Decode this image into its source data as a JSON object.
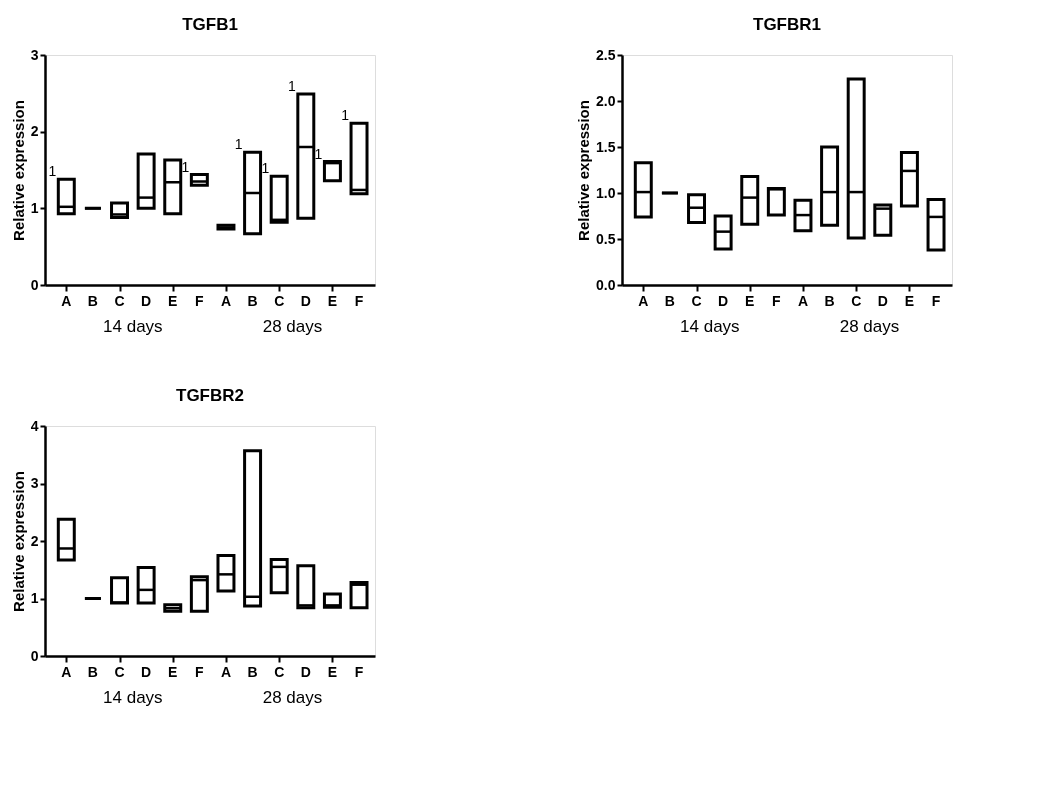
{
  "chart_data": [
    {
      "type": "box",
      "title": "TGFB1",
      "ylabel": "Relative expression",
      "categories": [
        "A",
        "B",
        "C",
        "D",
        "E",
        "F",
        "A",
        "B",
        "C",
        "D",
        "E",
        "F"
      ],
      "boxes": [
        {
          "low": 0.93,
          "q1": 0.93,
          "median": 1.02,
          "q3": 1.38,
          "high": 1.38
        },
        {
          "low": 1.0,
          "q1": 1.0,
          "median": 1.0,
          "q3": 1.0,
          "high": 1.0
        },
        {
          "low": 0.88,
          "q1": 0.88,
          "median": 0.92,
          "q3": 1.07,
          "high": 1.07
        },
        {
          "low": 1.0,
          "q1": 1.0,
          "median": 1.14,
          "q3": 1.71,
          "high": 1.71
        },
        {
          "low": 0.93,
          "q1": 0.93,
          "median": 1.34,
          "q3": 1.63,
          "high": 1.63
        },
        {
          "low": 1.3,
          "q1": 1.3,
          "median": 1.35,
          "q3": 1.44,
          "high": 1.44
        },
        {
          "low": 0.73,
          "q1": 0.73,
          "median": 0.75,
          "q3": 0.78,
          "high": 0.78
        },
        {
          "low": 0.67,
          "q1": 0.67,
          "median": 1.2,
          "q3": 1.73,
          "high": 1.73
        },
        {
          "low": 0.82,
          "q1": 0.82,
          "median": 0.85,
          "q3": 1.42,
          "high": 1.42
        },
        {
          "low": 0.87,
          "q1": 0.87,
          "median": 1.8,
          "q3": 2.49,
          "high": 2.49
        },
        {
          "low": 1.36,
          "q1": 1.36,
          "median": 1.59,
          "q3": 1.61,
          "high": 1.61
        },
        {
          "low": 1.19,
          "q1": 1.19,
          "median": 1.24,
          "q3": 2.11,
          "high": 2.11
        }
      ],
      "ylim": [
        0,
        3
      ],
      "yticks": [
        0,
        1,
        2,
        3
      ],
      "grid": false,
      "value_labels": [
        "1",
        null,
        null,
        null,
        null,
        "1",
        null,
        "1",
        "1",
        "1",
        "1",
        "1"
      ],
      "annotations": [
        "14 days",
        "28 days"
      ]
    },
    {
      "type": "box",
      "title": "TGFBR1",
      "ylabel": "Relative expression",
      "categories": [
        "A",
        "B",
        "C",
        "D",
        "E",
        "F",
        "A",
        "B",
        "C",
        "D",
        "E",
        "F"
      ],
      "boxes": [
        {
          "low": 0.74,
          "q1": 0.74,
          "median": 1.01,
          "q3": 1.33,
          "high": 1.33
        },
        {
          "low": 1.0,
          "q1": 1.0,
          "median": 1.0,
          "q3": 1.0,
          "high": 1.0
        },
        {
          "low": 0.68,
          "q1": 0.68,
          "median": 0.84,
          "q3": 0.98,
          "high": 0.98
        },
        {
          "low": 0.39,
          "q1": 0.39,
          "median": 0.58,
          "q3": 0.75,
          "high": 0.75
        },
        {
          "low": 0.66,
          "q1": 0.66,
          "median": 0.95,
          "q3": 1.18,
          "high": 1.18
        },
        {
          "low": 0.76,
          "q1": 0.76,
          "median": 1.04,
          "q3": 1.05,
          "high": 1.05
        },
        {
          "low": 0.59,
          "q1": 0.59,
          "median": 0.76,
          "q3": 0.92,
          "high": 0.92
        },
        {
          "low": 0.65,
          "q1": 0.65,
          "median": 1.01,
          "q3": 1.5,
          "high": 1.5
        },
        {
          "low": 0.51,
          "q1": 0.51,
          "median": 1.01,
          "q3": 2.24,
          "high": 2.24
        },
        {
          "low": 0.54,
          "q1": 0.54,
          "median": 0.83,
          "q3": 0.87,
          "high": 0.87
        },
        {
          "low": 0.86,
          "q1": 0.86,
          "median": 1.24,
          "q3": 1.44,
          "high": 1.44
        },
        {
          "low": 0.38,
          "q1": 0.38,
          "median": 0.74,
          "q3": 0.93,
          "high": 0.93
        }
      ],
      "ylim": [
        0,
        2.5
      ],
      "yticks": [
        {
          "value": 0,
          "label": "0.0"
        },
        {
          "value": 0.5,
          "label": "0.5"
        },
        {
          "value": 1,
          "label": "1.0"
        },
        {
          "value": 1.5,
          "label": "1.5"
        },
        {
          "value": 2,
          "label": "2.0"
        },
        {
          "value": 2.5,
          "label": "2.5"
        }
      ],
      "grid": false,
      "annotations": [
        "14 days",
        "28 days"
      ]
    },
    {
      "type": "box",
      "title": "TGFBR2",
      "ylabel": "Relative expression",
      "categories": [
        "A",
        "B",
        "C",
        "D",
        "E",
        "F",
        "A",
        "B",
        "C",
        "D",
        "E",
        "F"
      ],
      "boxes": [
        {
          "low": 1.67,
          "q1": 1.67,
          "median": 1.87,
          "q3": 2.38,
          "high": 2.38
        },
        {
          "low": 1.0,
          "q1": 1.0,
          "median": 1.0,
          "q3": 1.0,
          "high": 1.0
        },
        {
          "low": 0.92,
          "q1": 0.92,
          "median": 0.93,
          "q3": 1.36,
          "high": 1.36
        },
        {
          "low": 0.92,
          "q1": 0.92,
          "median": 1.15,
          "q3": 1.54,
          "high": 1.54
        },
        {
          "low": 0.78,
          "q1": 0.78,
          "median": 0.83,
          "q3": 0.89,
          "high": 0.89
        },
        {
          "low": 0.78,
          "q1": 0.78,
          "median": 1.32,
          "q3": 1.38,
          "high": 1.38
        },
        {
          "low": 1.13,
          "q1": 1.13,
          "median": 1.42,
          "q3": 1.75,
          "high": 1.75
        },
        {
          "low": 0.87,
          "q1": 0.87,
          "median": 1.03,
          "q3": 3.57,
          "high": 3.57
        },
        {
          "low": 1.1,
          "q1": 1.1,
          "median": 1.55,
          "q3": 1.68,
          "high": 1.68
        },
        {
          "low": 0.84,
          "q1": 0.84,
          "median": 0.88,
          "q3": 1.57,
          "high": 1.57
        },
        {
          "low": 0.85,
          "q1": 0.85,
          "median": 0.88,
          "q3": 1.08,
          "high": 1.08
        },
        {
          "low": 0.84,
          "q1": 0.84,
          "median": 1.24,
          "q3": 1.28,
          "high": 1.28
        }
      ],
      "ylim": [
        0,
        4
      ],
      "yticks": [
        0,
        1,
        2,
        3,
        4
      ],
      "grid": false,
      "annotations": [
        "14 days",
        "28 days"
      ]
    }
  ]
}
